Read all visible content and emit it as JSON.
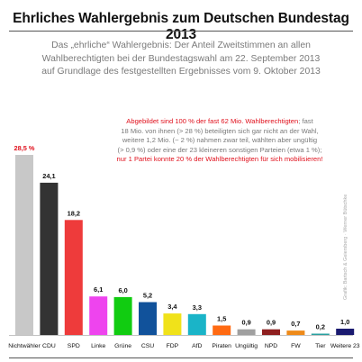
{
  "title": "Ehrliches Wahlergebnis zum Deutschen Bundestag 2013",
  "subtitle_lines": [
    "Das „ehrliche“ Wahlergebnis: Der Anteil Zweitstimmen an allen",
    "Wahlberechtigten bei der Bundestagswahl am 22. September 2013",
    "auf Grundlage des festgestellten Ergebnisses vom  9. Oktober 2013"
  ],
  "note": {
    "line1_red": "Abgebildet sind 100 % der fast 62 Mio. Wahlberechtigten",
    "line1_rest": "; fast",
    "line2": "18 Mio. von ihnen (> 28 %) beteiligten sich gar nicht an der Wahl,",
    "line3": "weitere 1,2 Mio. (~ 2 %) nahmen zwar teil, wählten aber ungültig",
    "line4": "(> 0,9 %) oder eine der 23 kleineren sonstigen Parteien (etwa 1 %);",
    "line5_red": "nur 1 Partei konnte 20 % der Wahlberechtigten für sich mobilisieren!"
  },
  "credit": "Grafik: Bartsch & Geiersberg · Werner Bütschke",
  "chart_data": {
    "type": "bar",
    "categories": [
      "Nichtwähler",
      "CDU",
      "SPD",
      "Linke",
      "Grüne",
      "CSU",
      "FDP",
      "AfD",
      "Piraten",
      "Ungültig",
      "NPD",
      "FW",
      "Tier",
      "Weitere 23"
    ],
    "values": [
      28.5,
      24.1,
      18.2,
      6.1,
      6.0,
      5.2,
      3.4,
      3.3,
      1.5,
      0.9,
      0.9,
      0.7,
      0.2,
      1.0
    ],
    "labels": [
      "28,5 %",
      "24,1",
      "18,2",
      "6,1",
      "6,0",
      "5,2",
      "3,4",
      "3,3",
      "1,5",
      "0,9",
      "0,9",
      "0,7",
      "0,2",
      "1,0"
    ],
    "colors": [
      "#c8c8c8",
      "#333333",
      "#ee3b3b",
      "#ee44ee",
      "#11cc11",
      "#11529b",
      "#f0e21a",
      "#1ab4c8",
      "#ff6a12",
      "#a0a0a0",
      "#8e1f1f",
      "#ee8a1a",
      "#2aa0a0",
      "#1a1a70"
    ],
    "label_colors": [
      "#e0101c",
      "#111111",
      "#111111",
      "#111111",
      "#111111",
      "#111111",
      "#111111",
      "#111111",
      "#111111",
      "#111111",
      "#111111",
      "#111111",
      "#111111",
      "#111111"
    ],
    "ylim": [
      0,
      28.5
    ],
    "grid": false
  }
}
